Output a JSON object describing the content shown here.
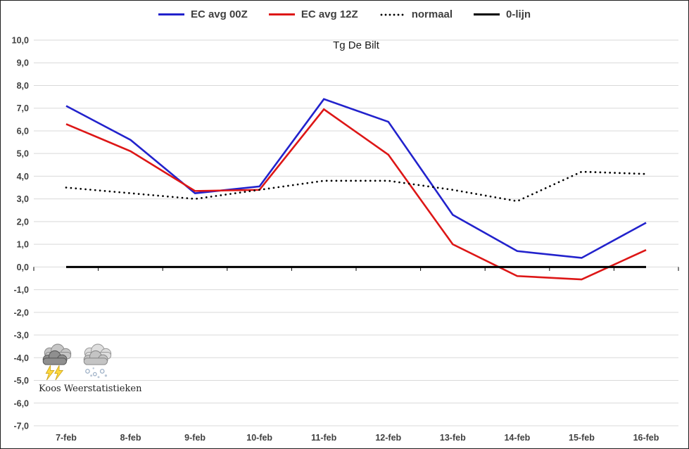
{
  "chart_data": {
    "type": "line",
    "title": "Tg De Bilt",
    "categories": [
      "7-feb",
      "8-feb",
      "9-feb",
      "10-feb",
      "11-feb",
      "12-feb",
      "13-feb",
      "14-feb",
      "15-feb",
      "16-feb"
    ],
    "series": [
      {
        "name": "EC avg 00Z",
        "color": "#2222cc",
        "style": "solid",
        "values": [
          7.1,
          5.6,
          3.25,
          3.55,
          7.4,
          6.4,
          2.3,
          0.7,
          0.4,
          1.95
        ]
      },
      {
        "name": "EC avg 12Z",
        "color": "#dd1616",
        "style": "solid",
        "values": [
          6.3,
          5.1,
          3.35,
          3.4,
          6.95,
          4.95,
          1.0,
          -0.4,
          -0.55,
          0.75
        ]
      },
      {
        "name": "normaal",
        "color": "#000000",
        "style": "dotted",
        "values": [
          3.5,
          3.25,
          3.0,
          3.4,
          3.8,
          3.8,
          3.4,
          2.9,
          4.2,
          4.1
        ]
      },
      {
        "name": "0-lijn",
        "color": "#000000",
        "style": "solid-thick",
        "values": [
          0,
          0,
          0,
          0,
          0,
          0,
          0,
          0,
          0,
          0
        ]
      }
    ],
    "ylim": [
      -7,
      10
    ],
    "ystep": 1,
    "y_ticks": [
      "10,0",
      "9,0",
      "8,0",
      "7,0",
      "6,0",
      "5,0",
      "4,0",
      "3,0",
      "2,0",
      "1,0",
      "0,0",
      "-1,0",
      "-2,0",
      "-3,0",
      "-4,0",
      "-5,0",
      "-6,0",
      "-7,0"
    ],
    "grid": "horizontal",
    "legend_position": "top-center",
    "decimal_separator": ","
  },
  "footer": {
    "watermark": "Koos Weerstatistieken",
    "icons": [
      "storm-cloud-lightning-icon",
      "snow-cloud-icon"
    ]
  },
  "colors": {
    "grid": "#d9d9d9",
    "tick_text": "#404040",
    "title_text": "#1a1a1a",
    "axis_tick": "#000000"
  }
}
